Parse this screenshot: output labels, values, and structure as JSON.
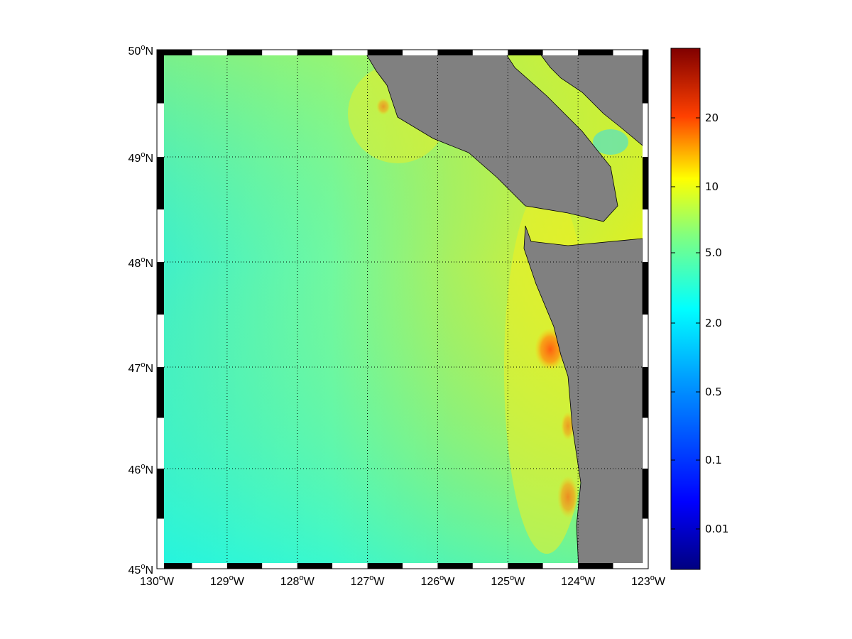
{
  "map": {
    "type": "map",
    "projection": "mercator",
    "lon_range": [
      -130,
      -123
    ],
    "lat_range": [
      45,
      50
    ],
    "grid": "dotted",
    "frame": "checkered",
    "colors": {
      "land": "#808080",
      "coastline": "#000000",
      "frame_dark": "#000000",
      "frame_light": "#ffffff"
    },
    "lon_labels": [
      {
        "deg": "130",
        "sup": "o",
        "hem": "W"
      },
      {
        "deg": "129",
        "sup": "o",
        "hem": "W"
      },
      {
        "deg": "128",
        "sup": "o",
        "hem": "W"
      },
      {
        "deg": "127",
        "sup": "o",
        "hem": "W"
      },
      {
        "deg": "126",
        "sup": "o",
        "hem": "W"
      },
      {
        "deg": "125",
        "sup": "o",
        "hem": "W"
      },
      {
        "deg": "124",
        "sup": "o",
        "hem": "W"
      },
      {
        "deg": "123",
        "sup": "o",
        "hem": "W"
      }
    ],
    "lat_labels": [
      {
        "deg": "50",
        "sup": "o",
        "hem": "N"
      },
      {
        "deg": "49",
        "sup": "o",
        "hem": "N"
      },
      {
        "deg": "48",
        "sup": "o",
        "hem": "N"
      },
      {
        "deg": "47",
        "sup": "o",
        "hem": "N"
      },
      {
        "deg": "46",
        "sup": "o",
        "hem": "N"
      },
      {
        "deg": "45",
        "sup": "o",
        "hem": "N"
      }
    ]
  },
  "colorbar": {
    "colormap": "jet",
    "scale": "log",
    "ticks": [
      "20",
      "10",
      "5.0",
      "2.0",
      "0.5",
      "0.1",
      "0.01"
    ]
  }
}
